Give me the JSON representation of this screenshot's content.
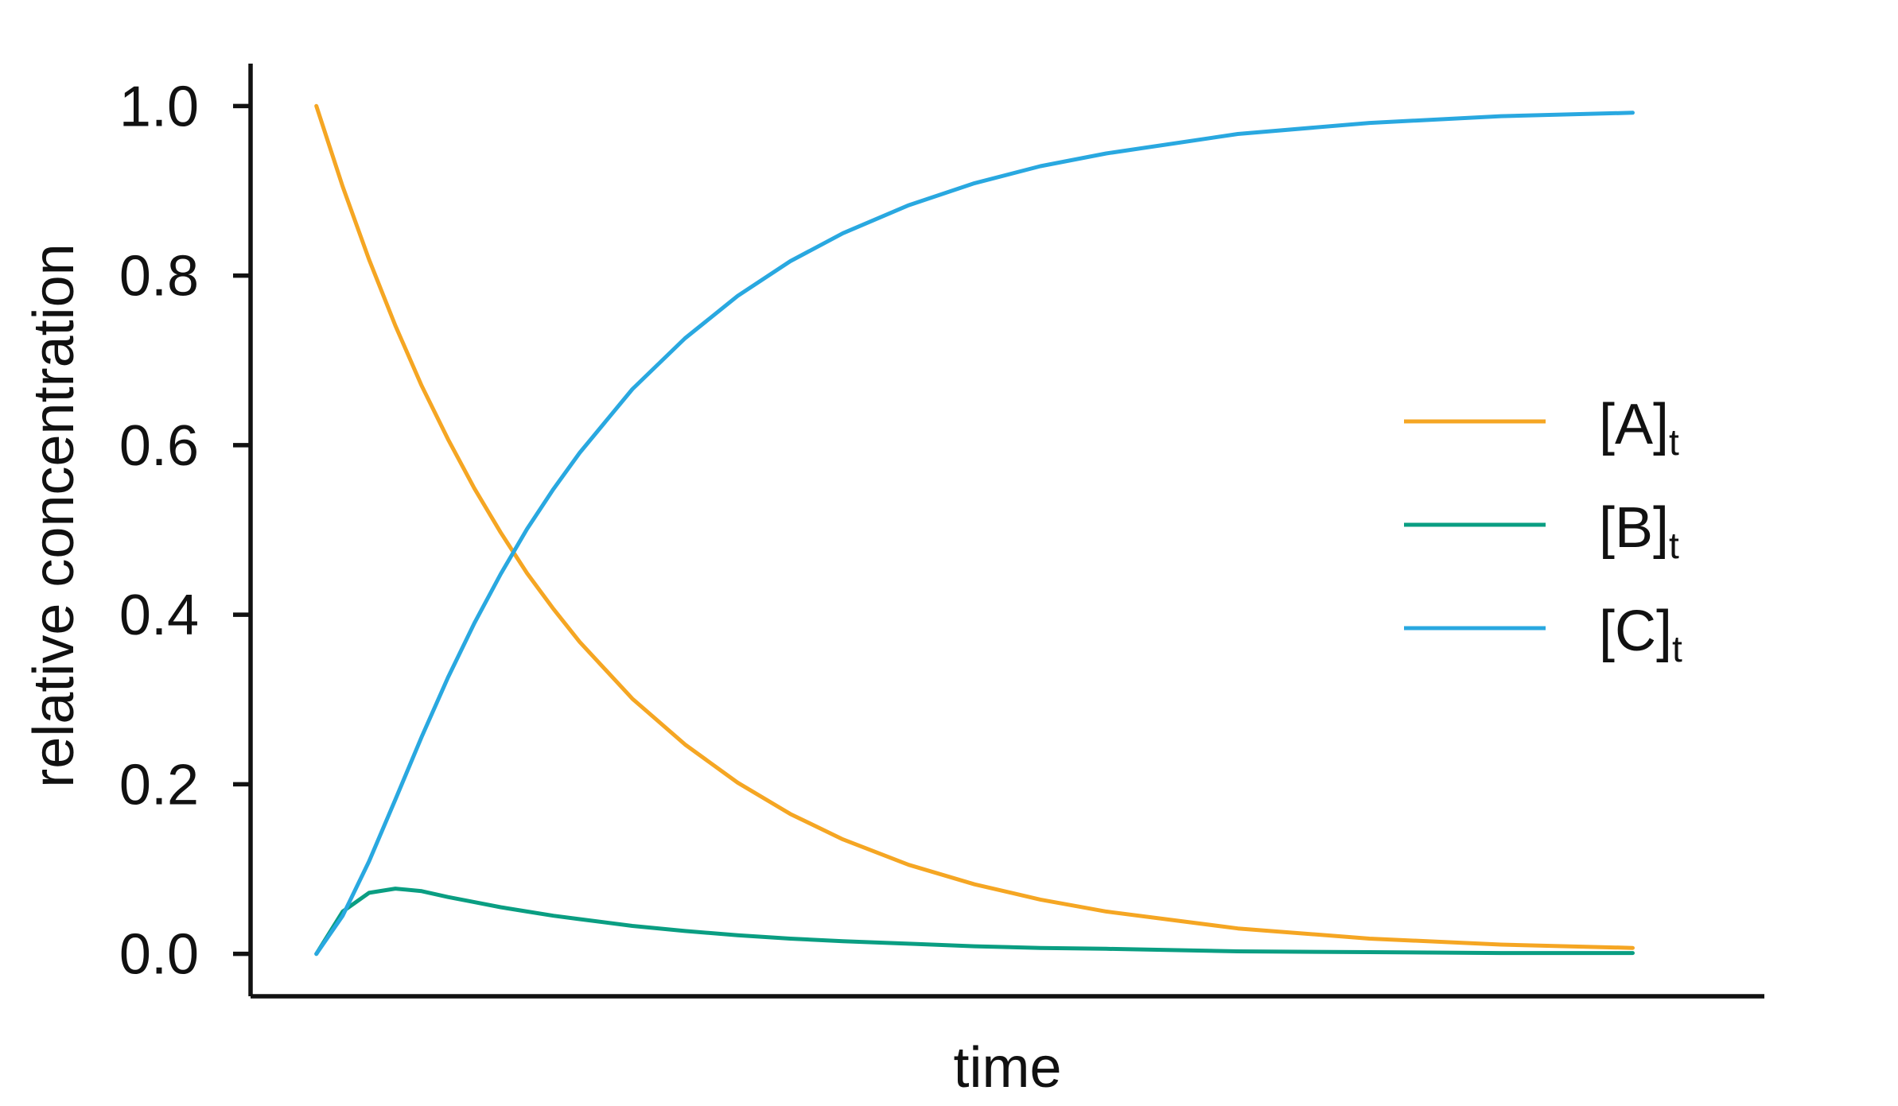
{
  "chart_data": {
    "type": "line",
    "title": "",
    "xlabel": "time",
    "ylabel": "relative concentration",
    "xlim": [
      -0.25,
      5.5
    ],
    "ylim": [
      -0.05,
      1.05
    ],
    "y_ticks": [
      0.0,
      0.2,
      0.4,
      0.6,
      0.8,
      1.0
    ],
    "y_tick_labels": [
      "0.0",
      "0.2",
      "0.4",
      "0.6",
      "0.8",
      "1.0"
    ],
    "x_ticks_shown": false,
    "grid": false,
    "legend_position": "right",
    "x": [
      0,
      0.1,
      0.2,
      0.3,
      0.4,
      0.5,
      0.6,
      0.7,
      0.8,
      0.9,
      1.0,
      1.2,
      1.4,
      1.6,
      1.8,
      2.0,
      2.25,
      2.5,
      2.75,
      3.0,
      3.5,
      4.0,
      4.5,
      5.0
    ],
    "series": [
      {
        "name": "[A]",
        "name_base": "[A]",
        "name_sub": "t",
        "color": "#F5A623",
        "values": [
          1.0,
          0.905,
          0.819,
          0.741,
          0.67,
          0.607,
          0.549,
          0.497,
          0.449,
          0.407,
          0.368,
          0.301,
          0.247,
          0.202,
          0.165,
          0.135,
          0.105,
          0.082,
          0.064,
          0.05,
          0.03,
          0.018,
          0.011,
          0.007
        ]
      },
      {
        "name": "[B]",
        "name_base": "[B]",
        "name_sub": "t",
        "color": "#0A9E82",
        "values": [
          0.0,
          0.05,
          0.072,
          0.077,
          0.074,
          0.067,
          0.061,
          0.055,
          0.05,
          0.045,
          0.041,
          0.033,
          0.027,
          0.022,
          0.018,
          0.015,
          0.012,
          0.009,
          0.007,
          0.006,
          0.003,
          0.002,
          0.001,
          0.001
        ]
      },
      {
        "name": "[C]",
        "name_base": "[C]",
        "name_sub": "t",
        "color": "#29A8E0",
        "values": [
          0.0,
          0.045,
          0.109,
          0.182,
          0.256,
          0.326,
          0.39,
          0.448,
          0.501,
          0.548,
          0.591,
          0.666,
          0.726,
          0.776,
          0.817,
          0.85,
          0.883,
          0.909,
          0.929,
          0.944,
          0.967,
          0.98,
          0.988,
          0.992
        ]
      }
    ]
  }
}
